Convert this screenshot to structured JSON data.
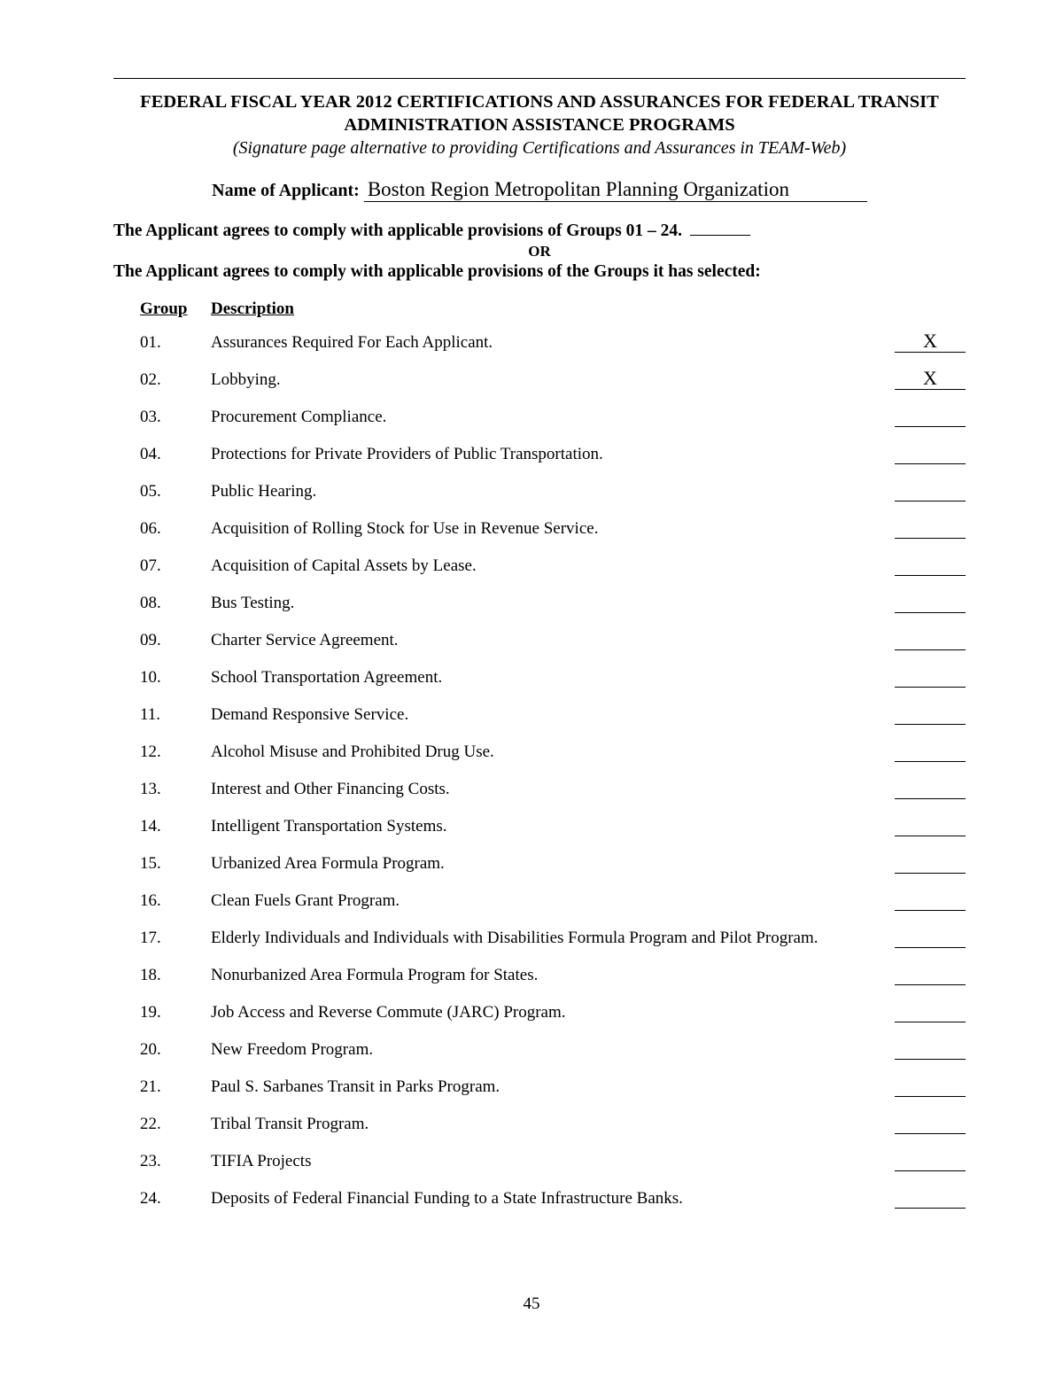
{
  "title": "FEDERAL FISCAL YEAR 2012 CERTIFICATIONS AND ASSURANCES FOR FEDERAL TRANSIT ADMINISTRATION ASSISTANCE PROGRAMS",
  "subtitle": "(Signature page alternative to providing Certifications and Assurances in TEAM-Web)",
  "applicant_label": "Name of Applicant",
  "applicant_value": "Boston Region Metropolitan Planning Organization",
  "comply_all": "The Applicant agrees to comply with applicable provisions of Groups 01 – 24.",
  "or_label": "OR",
  "comply_selected": "The Applicant agrees to comply with applicable provisions of the Groups it has selected:",
  "header_group": "Group",
  "header_description": "Description",
  "rows": [
    {
      "num": "01.",
      "desc": "Assurances Required For Each Applicant.",
      "mark": "X"
    },
    {
      "num": "02.",
      "desc": "Lobbying.",
      "mark": "X"
    },
    {
      "num": "03.",
      "desc": "Procurement Compliance.",
      "mark": ""
    },
    {
      "num": "04.",
      "desc": "Protections for Private Providers of Public Transportation.",
      "mark": ""
    },
    {
      "num": "05.",
      "desc": "Public Hearing.",
      "mark": ""
    },
    {
      "num": "06.",
      "desc": "Acquisition of Rolling Stock for Use in Revenue Service.",
      "mark": ""
    },
    {
      "num": "07.",
      "desc": "Acquisition of Capital Assets by Lease.",
      "mark": ""
    },
    {
      "num": "08.",
      "desc": "Bus Testing.",
      "mark": ""
    },
    {
      "num": "09.",
      "desc": "Charter Service Agreement.",
      "mark": ""
    },
    {
      "num": "10.",
      "desc": "School Transportation Agreement.",
      "mark": ""
    },
    {
      "num": "11.",
      "desc": "Demand Responsive Service.",
      "mark": ""
    },
    {
      "num": "12.",
      "desc": "Alcohol Misuse and Prohibited Drug Use.",
      "mark": ""
    },
    {
      "num": "13.",
      "desc": "Interest and Other Financing Costs.",
      "mark": ""
    },
    {
      "num": "14.",
      "desc": "Intelligent Transportation Systems.",
      "mark": ""
    },
    {
      "num": "15.",
      "desc": "Urbanized Area Formula Program.",
      "mark": ""
    },
    {
      "num": "16.",
      "desc": "Clean Fuels Grant Program.",
      "mark": ""
    },
    {
      "num": "17.",
      "desc": "Elderly Individuals and Individuals with Disabilities Formula Program and Pilot Program.",
      "mark": ""
    },
    {
      "num": "18.",
      "desc": "Nonurbanized Area Formula Program for States.",
      "mark": ""
    },
    {
      "num": "19.",
      "desc": "Job Access and Reverse Commute (JARC) Program.",
      "mark": ""
    },
    {
      "num": "20.",
      "desc": "New Freedom Program.",
      "mark": ""
    },
    {
      "num": "21.",
      "desc": "Paul S. Sarbanes Transit in Parks Program.",
      "mark": ""
    },
    {
      "num": "22.",
      "desc": "Tribal Transit Program.",
      "mark": ""
    },
    {
      "num": "23.",
      "desc": "TIFIA Projects",
      "mark": ""
    },
    {
      "num": "24.",
      "desc": "Deposits of Federal Financial Funding to a State Infrastructure Banks.",
      "mark": ""
    }
  ],
  "page_number": "45"
}
